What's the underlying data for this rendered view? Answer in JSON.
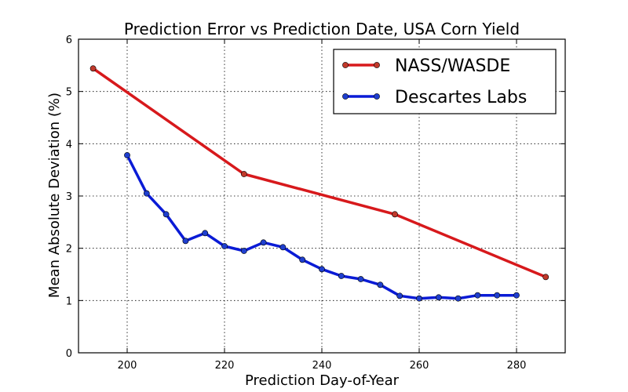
{
  "chart_data": {
    "type": "line",
    "title": "Prediction Error vs Prediction Date, USA Corn Yield",
    "xlabel": "Prediction Day-of-Year",
    "ylabel": "Mean Absolute Deviation (%)",
    "xlim": [
      190,
      290
    ],
    "ylim": [
      0,
      6
    ],
    "xticks": [
      200,
      220,
      240,
      260,
      280
    ],
    "yticks": [
      0,
      1,
      2,
      3,
      4,
      5,
      6
    ],
    "grid": true,
    "legend_position": "top-right",
    "series": [
      {
        "name": "NASS/WASDE",
        "color": "#d7191c",
        "marker_color": "#c0392b",
        "x": [
          193,
          224,
          255,
          286
        ],
        "y": [
          5.44,
          3.42,
          2.65,
          1.45
        ]
      },
      {
        "name": "Descartes Labs",
        "color": "#0a1bd6",
        "marker_color": "#1f3fcf",
        "x": [
          200,
          204,
          208,
          212,
          216,
          220,
          224,
          228,
          232,
          236,
          240,
          244,
          248,
          252,
          256,
          260,
          264,
          268,
          272,
          276,
          280
        ],
        "y": [
          3.78,
          3.05,
          2.65,
          2.14,
          2.29,
          2.04,
          1.95,
          2.11,
          2.02,
          1.78,
          1.6,
          1.47,
          1.41,
          1.3,
          1.09,
          1.04,
          1.06,
          1.04,
          1.1,
          1.1,
          1.1
        ]
      }
    ]
  }
}
